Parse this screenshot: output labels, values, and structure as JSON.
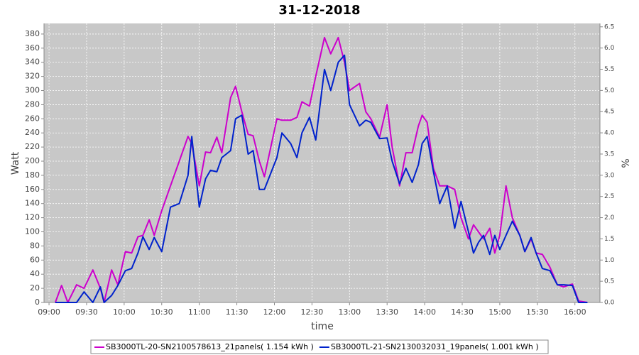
{
  "chart_data": {
    "type": "line",
    "title": "31-12-2018",
    "x_label": "time",
    "y_label": "Watt",
    "y2_label": "%",
    "x": [
      "09:05",
      "09:10",
      "09:15",
      "09:22",
      "09:28",
      "09:35",
      "09:41",
      "09:44",
      "09:50",
      "09:55",
      "10:01",
      "10:06",
      "10:11",
      "10:15",
      "10:20",
      "10:24",
      "10:30",
      "10:37",
      "10:44",
      "10:51",
      "10:54",
      "11:00",
      "11:05",
      "11:09",
      "11:14",
      "11:18",
      "11:25",
      "11:29",
      "11:34",
      "11:39",
      "11:43",
      "11:48",
      "11:52",
      "12:02",
      "12:06",
      "12:13",
      "12:18",
      "12:22",
      "12:28",
      "12:33",
      "12:40",
      "12:45",
      "12:51",
      "12:56",
      "13:00",
      "13:08",
      "13:13",
      "13:17",
      "13:24",
      "13:30",
      "13:34",
      "13:40",
      "13:45",
      "13:50",
      "13:55",
      "13:58",
      "14:02",
      "14:07",
      "14:12",
      "14:18",
      "14:24",
      "14:29",
      "14:35",
      "14:39",
      "14:43",
      "14:47",
      "14:52",
      "14:56",
      "15:00",
      "15:05",
      "15:10",
      "15:16",
      "15:20",
      "15:25",
      "15:29",
      "15:34",
      "15:40",
      "15:46",
      "15:51",
      "15:58",
      "16:03",
      "16:10"
    ],
    "series": [
      {
        "name": "SB3000TL-20-SN2100578613_21panels( 1.154 kWh )",
        "color": "#cc00cc",
        "values": [
          0,
          24,
          0,
          25,
          20,
          46,
          20,
          0,
          46,
          25,
          72,
          70,
          93,
          95,
          117,
          95,
          130,
          165,
          200,
          235,
          225,
          165,
          213,
          212,
          234,
          212,
          290,
          306,
          270,
          238,
          236,
          200,
          178,
          260,
          258,
          258,
          262,
          284,
          278,
          320,
          375,
          352,
          375,
          340,
          300,
          310,
          270,
          260,
          234,
          280,
          220,
          165,
          212,
          212,
          250,
          265,
          255,
          190,
          165,
          165,
          160,
          120,
          90,
          110,
          100,
          90,
          105,
          70,
          95,
          165,
          120,
          95,
          72,
          90,
          70,
          68,
          50,
          25,
          22,
          26,
          2,
          0
        ]
      },
      {
        "name": "SB3000TL-21-SN2130032031_19panels( 1.001 kWh )",
        "color": "#0022cc",
        "values": [
          0,
          0,
          0,
          0,
          15,
          0,
          22,
          0,
          10,
          24,
          45,
          48,
          70,
          93,
          75,
          92,
          72,
          135,
          140,
          180,
          235,
          135,
          175,
          187,
          185,
          205,
          215,
          260,
          265,
          210,
          215,
          160,
          160,
          205,
          240,
          225,
          205,
          240,
          262,
          230,
          330,
          300,
          340,
          350,
          280,
          250,
          258,
          255,
          232,
          233,
          200,
          168,
          190,
          170,
          195,
          225,
          235,
          185,
          140,
          165,
          105,
          143,
          100,
          70,
          85,
          95,
          68,
          95,
          75,
          95,
          115,
          95,
          72,
          92,
          70,
          48,
          45,
          25,
          25,
          24,
          0,
          0
        ]
      }
    ],
    "xlim": [
      "08:56",
      "16:20"
    ],
    "xticks": [
      "09:00",
      "09:30",
      "10:00",
      "10:30",
      "11:00",
      "11:30",
      "12:00",
      "12:30",
      "13:00",
      "13:30",
      "14:00",
      "14:30",
      "15:00",
      "15:30",
      "16:00"
    ],
    "ylim": [
      0,
      395
    ],
    "yticks": [
      0,
      20,
      40,
      60,
      80,
      100,
      120,
      140,
      160,
      180,
      200,
      220,
      240,
      260,
      280,
      300,
      320,
      340,
      360,
      380
    ],
    "y2lim": [
      0,
      6.58
    ],
    "y2ticks": [
      {
        "value": 0,
        "label": "0.0"
      },
      0.5,
      {
        "value": 1,
        "label": "1.0"
      },
      1.5,
      {
        "value": 2,
        "label": "2.0"
      },
      2.5,
      {
        "value": 3,
        "label": "3.0"
      },
      3.5,
      {
        "value": 4,
        "label": "4.0"
      },
      4.5,
      {
        "value": 5,
        "label": "5.0"
      },
      5.5,
      {
        "value": 6,
        "label": "6.0"
      },
      6.5
    ],
    "grid": true,
    "legend": "bottom"
  }
}
